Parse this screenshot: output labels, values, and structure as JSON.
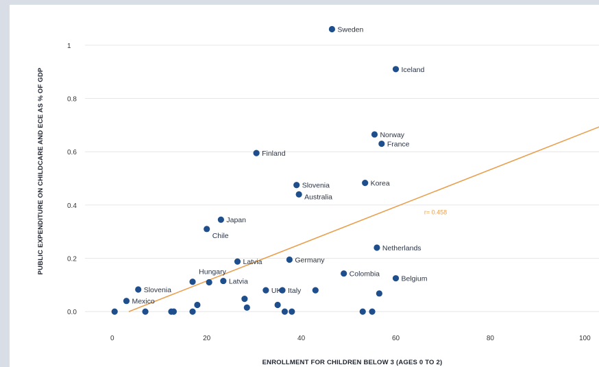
{
  "chart_data": {
    "type": "scatter",
    "xlabel": "ENROLLMENT FOR CHILDREN BELOW 3 (AGES 0 TO 2)",
    "ylabel": "PUBLIC EXPENDITURE ON CHILDCARE AND ECE AS % OF GDP",
    "xlim": [
      -2,
      103
    ],
    "ylim": [
      -0.02,
      1.1
    ],
    "x_ticks": [
      "0",
      "20",
      "40",
      "60",
      "80",
      "100"
    ],
    "y_ticks": [
      "0.0",
      "0.2",
      "0.4",
      "0.6",
      "0.8",
      "1"
    ],
    "grid": true,
    "marker_color": "#1f4e8c",
    "trend_color": "#e8a04f",
    "trendline": {
      "x": [
        3.5,
        104
      ],
      "y": [
        0.0,
        0.7
      ]
    },
    "trendline_annotation": "r= 0.458",
    "points": [
      {
        "x": 46.5,
        "y": 1.06,
        "label": "Sweden"
      },
      {
        "x": 60,
        "y": 0.91,
        "label": "Iceland"
      },
      {
        "x": 55.5,
        "y": 0.665,
        "label": "Norway"
      },
      {
        "x": 57,
        "y": 0.63,
        "label": "France"
      },
      {
        "x": 30.5,
        "y": 0.595,
        "label": "Finland"
      },
      {
        "x": 39,
        "y": 0.475,
        "label": "Slovenia"
      },
      {
        "x": 39.5,
        "y": 0.44,
        "label": "Australia"
      },
      {
        "x": 53.5,
        "y": 0.483,
        "label": "Korea"
      },
      {
        "x": 23,
        "y": 0.345,
        "label": "Japan"
      },
      {
        "x": 20,
        "y": 0.31,
        "label": "Chile"
      },
      {
        "x": 56,
        "y": 0.24,
        "label": "Netherlands"
      },
      {
        "x": 26.5,
        "y": 0.188,
        "label": "Latvia"
      },
      {
        "x": 37.5,
        "y": 0.195,
        "label": "Germany"
      },
      {
        "x": 49,
        "y": 0.143,
        "label": "Colombia"
      },
      {
        "x": 60,
        "y": 0.125,
        "label": "Belgium"
      },
      {
        "x": 20.5,
        "y": 0.11,
        "label": "Hungary"
      },
      {
        "x": 23.5,
        "y": 0.115,
        "label": "Latvia"
      },
      {
        "x": 5.5,
        "y": 0.083,
        "label": "Slovenia"
      },
      {
        "x": 3,
        "y": 0.04,
        "label": "Mexico"
      },
      {
        "x": 32.5,
        "y": 0.08,
        "label": "UK"
      },
      {
        "x": 36,
        "y": 0.08,
        "label": "Italy"
      },
      {
        "x": 0.5,
        "y": 0.0,
        "label": ""
      },
      {
        "x": 7,
        "y": 0.0,
        "label": ""
      },
      {
        "x": 12.5,
        "y": 0.0,
        "label": ""
      },
      {
        "x": 13,
        "y": 0.0,
        "label": ""
      },
      {
        "x": 17,
        "y": 0.0,
        "label": ""
      },
      {
        "x": 17,
        "y": 0.112,
        "label": ""
      },
      {
        "x": 18,
        "y": 0.025,
        "label": ""
      },
      {
        "x": 28,
        "y": 0.048,
        "label": ""
      },
      {
        "x": 28.5,
        "y": 0.015,
        "label": ""
      },
      {
        "x": 35,
        "y": 0.025,
        "label": ""
      },
      {
        "x": 36.5,
        "y": 0.0,
        "label": ""
      },
      {
        "x": 38,
        "y": 0.0,
        "label": ""
      },
      {
        "x": 43,
        "y": 0.08,
        "label": ""
      },
      {
        "x": 53,
        "y": 0.0,
        "label": ""
      },
      {
        "x": 55,
        "y": 0.0,
        "label": ""
      },
      {
        "x": 56.5,
        "y": 0.068,
        "label": ""
      }
    ]
  }
}
